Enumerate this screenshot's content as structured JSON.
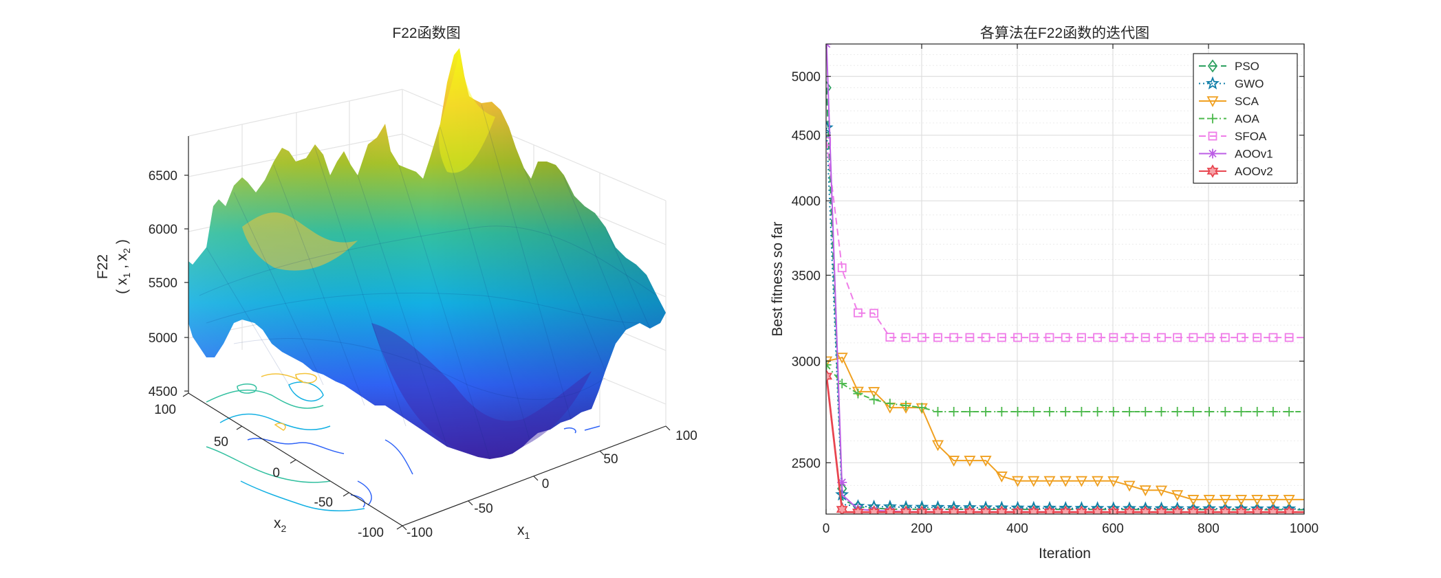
{
  "surface_chart": {
    "type": "surface3d",
    "title": "F22函数图",
    "zlabel": "F22",
    "zlabel2": "( x",
    "zlabel2_sub1": "1",
    "zlabel2_mid": " , x",
    "zlabel2_sub2": "2",
    "zlabel2_end": " )",
    "xlabel": "x",
    "xlabel_sub": "1",
    "ylabel": "x",
    "ylabel_sub": "2",
    "x_ticks": [
      "-100",
      "-50",
      "0",
      "50",
      "100"
    ],
    "y_ticks": [
      "-100",
      "-50",
      "0",
      "50",
      "100"
    ],
    "z_ticks": [
      "4500",
      "5000",
      "5500",
      "6000",
      "6500"
    ],
    "xlim": [
      -100,
      100
    ],
    "ylim": [
      -100,
      100
    ],
    "zlim": [
      4500,
      6900
    ],
    "colormap": [
      "#3e26a8",
      "#2f63f7",
      "#13b0e3",
      "#33c0a0",
      "#a8c42a",
      "#f4c338",
      "#f9fb15"
    ]
  },
  "chart_data": {
    "type": "line",
    "title": "各算法在F22函数的迭代图",
    "xlabel": "Iteration",
    "ylabel": "Best fitness so far",
    "xlim": [
      0,
      1000
    ],
    "ylim": [
      2280,
      5300
    ],
    "y_scale": "log",
    "x_ticks": [
      0,
      200,
      400,
      600,
      800,
      1000
    ],
    "y_ticks": [
      2500,
      3000,
      3500,
      4000,
      4500,
      5000
    ],
    "grid": true,
    "legend": "top-right",
    "series": [
      {
        "name": "PSO",
        "color": "#2ca05f",
        "marker": "diamond",
        "dash": "10,6",
        "x": [
          1,
          34,
          67,
          100,
          134,
          167,
          200,
          1000
        ],
        "y": [
          4900,
          2340,
          2310,
          2305,
          2300,
          2300,
          2300,
          2298
        ]
      },
      {
        "name": "GWO",
        "color": "#0f7ea8",
        "marker": "star",
        "dash": "2,4",
        "x": [
          1,
          34,
          67,
          100,
          134,
          167,
          200,
          400,
          600,
          800,
          1000
        ],
        "y": [
          4560,
          2320,
          2312,
          2310,
          2310,
          2308,
          2308,
          2305,
          2303,
          2302,
          2301
        ]
      },
      {
        "name": "SCA",
        "color": "#f0a020",
        "marker": "triangle-down",
        "dash": "",
        "x": [
          1,
          34,
          67,
          100,
          134,
          167,
          200,
          234,
          267,
          300,
          334,
          367,
          400,
          434,
          467,
          500,
          534,
          567,
          600,
          634,
          667,
          700,
          734,
          767,
          800,
          834,
          867,
          900,
          934,
          967,
          1000
        ],
        "y": [
          3000,
          3020,
          2840,
          2840,
          2760,
          2760,
          2760,
          2580,
          2510,
          2510,
          2510,
          2440,
          2420,
          2420,
          2420,
          2420,
          2420,
          2420,
          2420,
          2400,
          2380,
          2380,
          2360,
          2340,
          2340,
          2340,
          2340,
          2340,
          2340,
          2340,
          2340
        ]
      },
      {
        "name": "AOA",
        "color": "#4ab84a",
        "marker": "plus",
        "dash": "8,4,2,4",
        "x": [
          1,
          34,
          67,
          100,
          134,
          167,
          200,
          234,
          1000
        ],
        "y": [
          2980,
          2880,
          2830,
          2800,
          2780,
          2770,
          2760,
          2740,
          2740
        ]
      },
      {
        "name": "SFOA",
        "color": "#ef7ce8",
        "marker": "square",
        "dash": "10,6",
        "x": [
          1,
          34,
          67,
          100,
          134,
          167,
          200,
          1000
        ],
        "y": [
          4450,
          3530,
          3270,
          3270,
          3130,
          3130,
          3130,
          3130
        ]
      },
      {
        "name": "AOOv1",
        "color": "#bc5ee6",
        "marker": "asterisk",
        "dash": "",
        "x": [
          1,
          34,
          67,
          100,
          134,
          167,
          200,
          1000
        ],
        "y": [
          5300,
          2360,
          2300,
          2295,
          2292,
          2290,
          2290,
          2288
        ]
      },
      {
        "name": "AOOv2",
        "color": "#e8454f",
        "marker": "hexagram",
        "dash": "",
        "x": [
          1,
          34,
          67,
          100,
          134,
          167,
          200,
          1000
        ],
        "y": [
          2920,
          2288,
          2288,
          2288,
          2288,
          2288,
          2288,
          2288
        ]
      }
    ]
  }
}
